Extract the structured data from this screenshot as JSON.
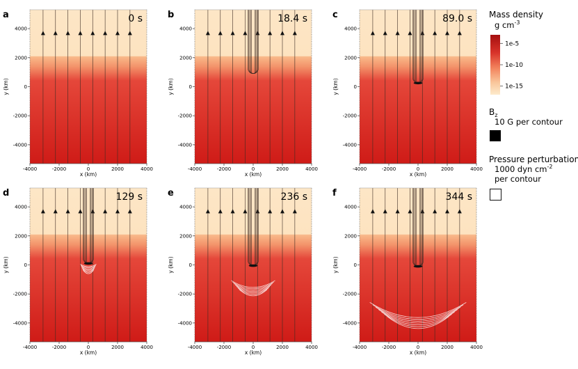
{
  "chart_data": {
    "type": "heatmap",
    "axes": {
      "xlabel": "x  (km)",
      "ylabel": "y  (km)",
      "xlim": [
        -4000,
        4000
      ],
      "ylim": [
        -5300,
        5300
      ],
      "xticks": [
        "-4000",
        "-2000",
        "0",
        "2000",
        "4000"
      ],
      "yticks": [
        "4000",
        "2000",
        "0",
        "-2000",
        "-4000"
      ],
      "xtick_values": [
        -4000,
        -2000,
        0,
        2000,
        4000
      ],
      "ytick_values": [
        4000,
        2000,
        0,
        -2000,
        -4000
      ]
    },
    "field_line_x_km": [
      -3100,
      -2250,
      -1400,
      -550,
      300,
      1150,
      2000,
      2850
    ],
    "arrow_y_km": 3700,
    "transition_region_km": [
      1000,
      2150
    ],
    "panels": [
      {
        "letter": "a",
        "time": "0 s",
        "tube": false,
        "front_y_km": null,
        "ripple_y_km": null,
        "ripple_halfwidth_km": null
      },
      {
        "letter": "b",
        "time": "18.4 s",
        "tube": true,
        "front_y_km": 900,
        "ripple_y_km": null,
        "ripple_halfwidth_km": null
      },
      {
        "letter": "c",
        "time": "89.0 s",
        "tube": true,
        "front_y_km": 250,
        "ripple_y_km": null,
        "ripple_halfwidth_km": null
      },
      {
        "letter": "d",
        "time": "129 s",
        "tube": true,
        "front_y_km": 100,
        "ripple_y_km": -250,
        "ripple_halfwidth_km": 550
      },
      {
        "letter": "e",
        "time": "236 s",
        "tube": true,
        "front_y_km": -50,
        "ripple_y_km": -1900,
        "ripple_halfwidth_km": 1500
      },
      {
        "letter": "f",
        "time": "344 s",
        "tube": true,
        "front_y_km": -100,
        "ripple_y_km": -4400,
        "ripple_halfwidth_km": 3300
      }
    ],
    "legend": {
      "density_title": "Mass density",
      "density_unit": "g cm",
      "density_unit_sup": "-3",
      "colorbar_ticks": [
        "1e-5",
        "1e-10",
        "1e-15"
      ],
      "colorbar_tick_values": [
        -5,
        -10,
        -15
      ],
      "colorbar_range": [
        -17,
        -3
      ],
      "bz_title": "B",
      "bz_sub": "z",
      "bz_desc": "10 G per contour",
      "pressure_title": "Pressure perturbation",
      "pressure_line1": "1000 dyn cm",
      "pressure_line1_sup": "-2",
      "pressure_line2": "per contour"
    },
    "colors": {
      "corona": "#fde6c6",
      "chromo_top": "#f8a97a",
      "photo_mid": "#e5473a",
      "photo_bottom": "#cf1b17",
      "colorbar_top": "#a50f0f",
      "colorbar_mid": "#ea5a3e",
      "colorbar_bottom": "#fdeacc",
      "field_line": "#3b2a22",
      "bz_swatch": "#000000",
      "pressure": "#ffffff"
    }
  }
}
